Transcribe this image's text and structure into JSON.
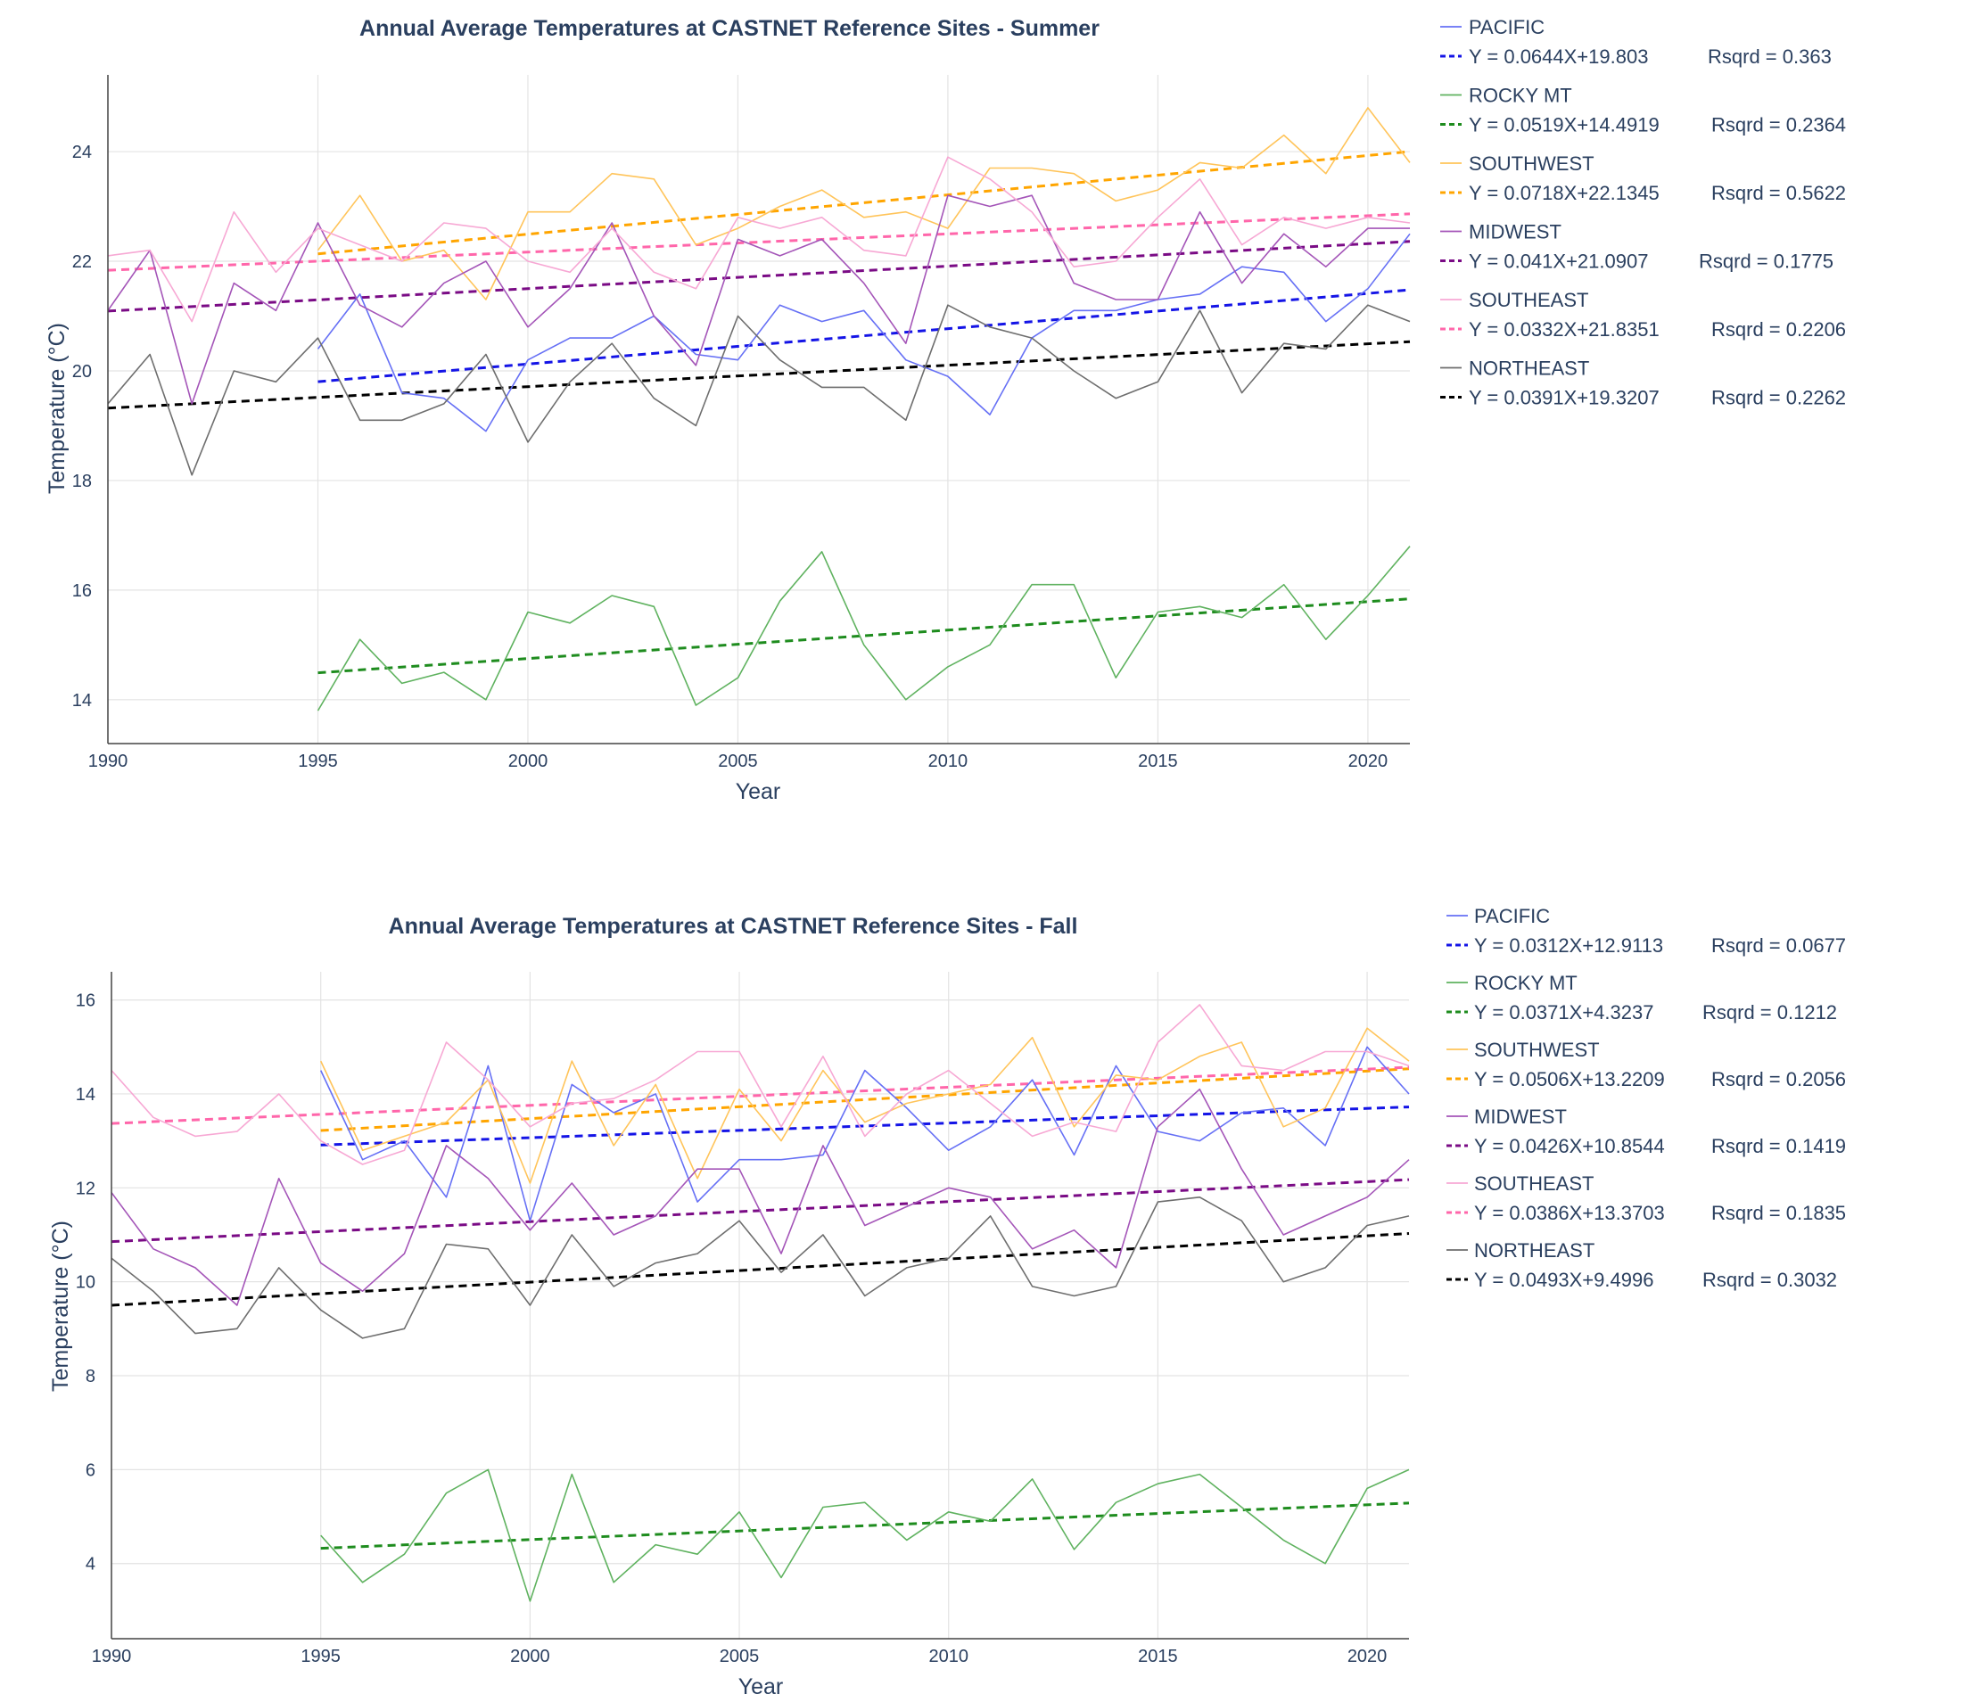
{
  "chart_data": [
    {
      "type": "line",
      "title": "Annual Average Temperatures at CASTNET Reference Sites - Summer",
      "xlabel": "Year",
      "ylabel": "Temperature (°C)",
      "xlim": [
        1990,
        2021
      ],
      "ylim": [
        13.2,
        25.4
      ],
      "xticks": [
        1990,
        1995,
        2000,
        2005,
        2010,
        2015,
        2020
      ],
      "yticks": [
        14,
        16,
        18,
        20,
        22,
        24
      ],
      "grid": true,
      "legend_position": "right",
      "series": [
        {
          "name": "PACIFIC",
          "color": "#6670f5",
          "trend_color": "#1414e6",
          "trend": "Y = 0.0644X+19.803",
          "rsq": "Rsqrd = 0.363",
          "slope": 0.0644,
          "intercept": 19.803,
          "start": 1995,
          "values": [
            20.4,
            21.4,
            19.6,
            19.5,
            18.9,
            20.2,
            20.6,
            20.6,
            21.0,
            20.3,
            20.2,
            21.2,
            20.9,
            21.1,
            20.2,
            19.9,
            19.2,
            20.6,
            21.1,
            21.1,
            21.3,
            21.4,
            21.9,
            21.8,
            20.9,
            21.5,
            22.5
          ]
        },
        {
          "name": "ROCKY MT",
          "color": "#5fb25f",
          "trend_color": "#1e8c1e",
          "trend": "Y = 0.0519X+14.4919",
          "rsq": "Rsqrd = 0.2364",
          "slope": 0.0519,
          "intercept": 14.4919,
          "start": 1995,
          "values": [
            13.8,
            15.1,
            14.3,
            14.5,
            14.0,
            15.6,
            15.4,
            15.9,
            15.7,
            13.9,
            14.4,
            15.8,
            16.7,
            15.0,
            14.0,
            14.6,
            15.0,
            16.1,
            16.1,
            14.4,
            15.6,
            15.7,
            15.5,
            16.1,
            15.1,
            15.9,
            16.8
          ]
        },
        {
          "name": "SOUTHWEST",
          "color": "#ffc45a",
          "trend_color": "#ffa500",
          "trend": "Y = 0.0718X+22.1345",
          "rsq": "Rsqrd = 0.5622",
          "slope": 0.0718,
          "intercept": 22.1345,
          "start": 1995,
          "values": [
            22.2,
            23.2,
            22.0,
            22.2,
            21.3,
            22.9,
            22.9,
            23.6,
            23.5,
            22.3,
            22.6,
            23.0,
            23.3,
            22.8,
            22.9,
            22.6,
            23.7,
            23.7,
            23.6,
            23.1,
            23.3,
            23.8,
            23.7,
            24.3,
            23.6,
            24.8,
            23.8
          ]
        },
        {
          "name": "MIDWEST",
          "color": "#a455b8",
          "trend_color": "#7a0b85",
          "trend": "Y = 0.041X+21.0907",
          "rsq": "Rsqrd = 0.1775",
          "slope": 0.041,
          "intercept": 21.0907,
          "start": 1990,
          "values": [
            21.1,
            22.2,
            19.4,
            21.6,
            21.1,
            22.7,
            21.2,
            20.8,
            21.6,
            22.0,
            20.8,
            21.5,
            22.7,
            21.0,
            20.1,
            22.4,
            22.1,
            22.4,
            21.6,
            20.5,
            23.2,
            23.0,
            23.2,
            21.6,
            21.3,
            21.3,
            22.9,
            21.6,
            22.5,
            21.9,
            22.6,
            22.6
          ]
        },
        {
          "name": "SOUTHEAST",
          "color": "#f7a8d4",
          "trend_color": "#ff66aa",
          "trend": "Y = 0.0332X+21.8351",
          "rsq": "Rsqrd = 0.2206",
          "slope": 0.0332,
          "intercept": 21.8351,
          "start": 1990,
          "values": [
            22.1,
            22.2,
            20.9,
            22.9,
            21.8,
            22.6,
            22.3,
            22.0,
            22.7,
            22.6,
            22.0,
            21.8,
            22.6,
            21.8,
            21.5,
            22.8,
            22.6,
            22.8,
            22.2,
            22.1,
            23.9,
            23.5,
            22.9,
            21.9,
            22.0,
            22.8,
            23.5,
            22.3,
            22.8,
            22.6,
            22.8,
            22.7
          ]
        },
        {
          "name": "NORTHEAST",
          "color": "#6e6e6e",
          "trend_color": "#000000",
          "trend": "Y = 0.0391X+19.3207",
          "rsq": "Rsqrd = 0.2262",
          "slope": 0.0391,
          "intercept": 19.3207,
          "start": 1990,
          "values": [
            19.4,
            20.3,
            18.1,
            20.0,
            19.8,
            20.6,
            19.1,
            19.1,
            19.4,
            20.3,
            18.7,
            19.8,
            20.5,
            19.5,
            19.0,
            21.0,
            20.2,
            19.7,
            19.7,
            19.1,
            21.2,
            20.8,
            20.6,
            20.0,
            19.5,
            19.8,
            21.1,
            19.6,
            20.5,
            20.4,
            21.2,
            20.9
          ]
        }
      ]
    },
    {
      "type": "line",
      "title": "Annual Average Temperatures at CASTNET Reference Sites - Fall",
      "xlabel": "Year",
      "ylabel": "Temperature (°C)",
      "xlim": [
        1990,
        2021
      ],
      "ylim": [
        2.4,
        16.6
      ],
      "xticks": [
        1990,
        1995,
        2000,
        2005,
        2010,
        2015,
        2020
      ],
      "yticks": [
        4,
        6,
        8,
        10,
        12,
        14,
        16
      ],
      "grid": true,
      "legend_position": "right",
      "series": [
        {
          "name": "PACIFIC",
          "color": "#6670f5",
          "trend_color": "#1414e6",
          "trend": "Y = 0.0312X+12.9113",
          "rsq": "Rsqrd = 0.0677",
          "slope": 0.0312,
          "intercept": 12.9113,
          "start": 1995,
          "values": [
            14.5,
            12.6,
            13.0,
            11.8,
            14.6,
            11.3,
            14.2,
            13.6,
            14.0,
            11.7,
            12.6,
            12.6,
            12.7,
            14.5,
            13.7,
            12.8,
            13.3,
            14.3,
            12.7,
            14.6,
            13.2,
            13.0,
            13.6,
            13.7,
            12.9,
            15.0,
            14.0
          ]
        },
        {
          "name": "ROCKY MT",
          "color": "#5fb25f",
          "trend_color": "#1e8c1e",
          "trend": "Y = 0.0371X+4.3237",
          "rsq": "Rsqrd = 0.1212",
          "slope": 0.0371,
          "intercept": 4.3237,
          "start": 1995,
          "values": [
            4.6,
            3.6,
            4.2,
            5.5,
            6.0,
            3.2,
            5.9,
            3.6,
            4.4,
            4.2,
            5.1,
            3.7,
            5.2,
            5.3,
            4.5,
            5.1,
            4.9,
            5.8,
            4.3,
            5.3,
            5.7,
            5.9,
            5.2,
            4.5,
            4.0,
            5.6,
            6.0
          ]
        },
        {
          "name": "SOUTHWEST",
          "color": "#ffc45a",
          "trend_color": "#ffa500",
          "trend": "Y = 0.0506X+13.2209",
          "rsq": "Rsqrd = 0.2056",
          "slope": 0.0506,
          "intercept": 13.2209,
          "start": 1995,
          "values": [
            14.7,
            12.8,
            13.1,
            13.4,
            14.3,
            12.1,
            14.7,
            12.9,
            14.2,
            12.2,
            14.1,
            13.0,
            14.5,
            13.4,
            13.8,
            14.0,
            14.2,
            15.2,
            13.3,
            14.4,
            14.3,
            14.8,
            15.1,
            13.3,
            13.7,
            15.4,
            14.7
          ]
        },
        {
          "name": "MIDWEST",
          "color": "#a455b8",
          "trend_color": "#7a0b85",
          "trend": "Y = 0.0426X+10.8544",
          "rsq": "Rsqrd = 0.1419",
          "slope": 0.0426,
          "intercept": 10.8544,
          "start": 1990,
          "values": [
            11.9,
            10.7,
            10.3,
            9.5,
            12.2,
            10.4,
            9.8,
            10.6,
            12.9,
            12.2,
            11.1,
            12.1,
            11.0,
            11.4,
            12.4,
            12.4,
            10.6,
            12.9,
            11.2,
            11.6,
            12.0,
            11.8,
            10.7,
            11.1,
            10.3,
            13.3,
            14.1,
            12.4,
            11.0,
            11.4,
            11.8,
            12.6
          ]
        },
        {
          "name": "SOUTHEAST",
          "color": "#f7a8d4",
          "trend_color": "#ff66aa",
          "trend": "Y = 0.0386X+13.3703",
          "rsq": "Rsqrd = 0.1835",
          "slope": 0.0386,
          "intercept": 13.3703,
          "start": 1990,
          "values": [
            14.5,
            13.5,
            13.1,
            13.2,
            14.0,
            13.0,
            12.5,
            12.8,
            15.1,
            14.3,
            13.3,
            13.8,
            13.9,
            14.3,
            14.9,
            14.9,
            13.3,
            14.8,
            13.1,
            14.0,
            14.5,
            13.8,
            13.1,
            13.4,
            13.2,
            15.1,
            15.9,
            14.6,
            14.5,
            14.9,
            14.9,
            14.6
          ]
        },
        {
          "name": "NORTHEAST",
          "color": "#6e6e6e",
          "trend_color": "#000000",
          "trend": "Y = 0.0493X+9.4996",
          "rsq": "Rsqrd = 0.3032",
          "slope": 0.0493,
          "intercept": 9.4996,
          "start": 1990,
          "values": [
            10.5,
            9.8,
            8.9,
            9.0,
            10.3,
            9.4,
            8.8,
            9.0,
            10.8,
            10.7,
            9.5,
            11.0,
            9.9,
            10.4,
            10.6,
            11.3,
            10.2,
            11.0,
            9.7,
            10.3,
            10.5,
            11.4,
            9.9,
            9.7,
            9.9,
            11.7,
            11.8,
            11.3,
            10.0,
            10.3,
            11.2,
            11.4
          ]
        }
      ]
    }
  ]
}
